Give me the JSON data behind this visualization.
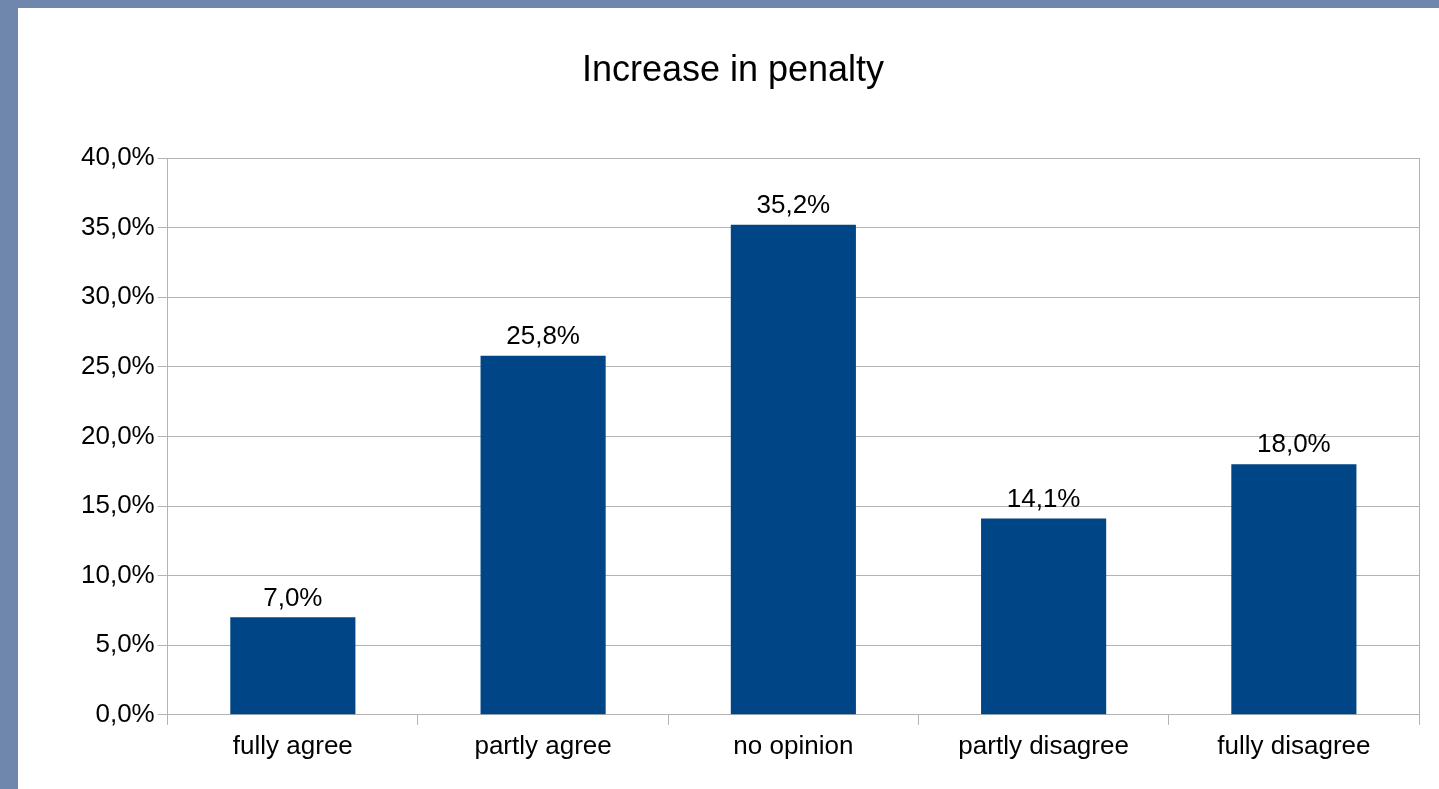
{
  "chart_data": {
    "type": "bar",
    "title": "Increase in penalty",
    "categories": [
      "fully agree",
      "partly agree",
      "no opinion",
      "partly disagree",
      "fully disagree"
    ],
    "values": [
      7.0,
      25.8,
      35.2,
      14.1,
      18.0
    ],
    "value_labels": [
      "7,0%",
      "25,8%",
      "35,2%",
      "14,1%",
      "18,0%"
    ],
    "color": "#004586",
    "ylim": [
      0,
      40
    ],
    "yticks": [
      {
        "value": 0,
        "label": "0,0%"
      },
      {
        "value": 5,
        "label": "5,0%"
      },
      {
        "value": 10,
        "label": "10,0%"
      },
      {
        "value": 15,
        "label": "15,0%"
      },
      {
        "value": 20,
        "label": "20,0%"
      },
      {
        "value": 25,
        "label": "25,0%"
      },
      {
        "value": 30,
        "label": "30,0%"
      },
      {
        "value": 35,
        "label": "35,0%"
      },
      {
        "value": 40,
        "label": "40,0%"
      }
    ],
    "grid": "y",
    "legend": false
  }
}
